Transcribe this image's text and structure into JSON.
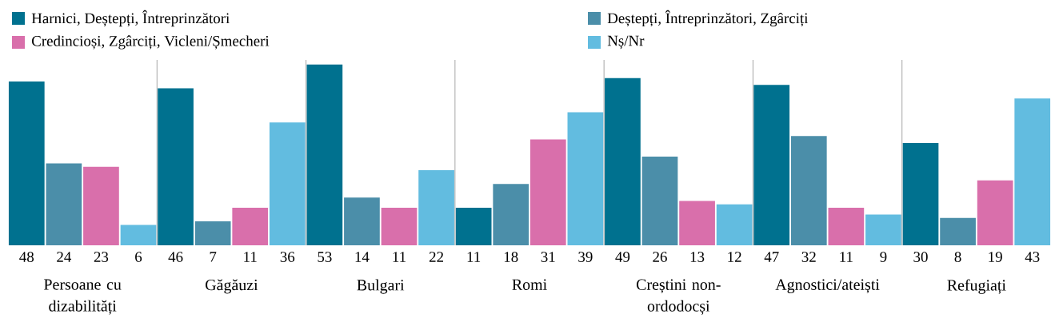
{
  "chart_data": {
    "type": "bar",
    "categories": [
      "Persoane cu dizabilități",
      "Găgăuzi",
      "Bulgari",
      "Romi",
      "Creștini non-ordodocși",
      "Agnostici/ateiști",
      "Refugiați"
    ],
    "series": [
      {
        "name": "Harnici, Deștepți, Întreprinzători",
        "color": "#00718f",
        "values": [
          48,
          46,
          53,
          11,
          49,
          47,
          30
        ]
      },
      {
        "name": "Deștepți, Întreprinzători, Zgârciți",
        "color": "#4b8ea9",
        "values": [
          24,
          7,
          14,
          18,
          26,
          32,
          8
        ]
      },
      {
        "name": "Credincioși, Zgârciți, Vicleni/Șmecheri",
        "color": "#d96fab",
        "values": [
          23,
          11,
          11,
          31,
          13,
          11,
          19
        ]
      },
      {
        "name": "Nș/Nr",
        "color": "#62bce0",
        "values": [
          6,
          36,
          22,
          39,
          12,
          9,
          43
        ]
      }
    ],
    "data_labels": true,
    "legend": "top"
  }
}
